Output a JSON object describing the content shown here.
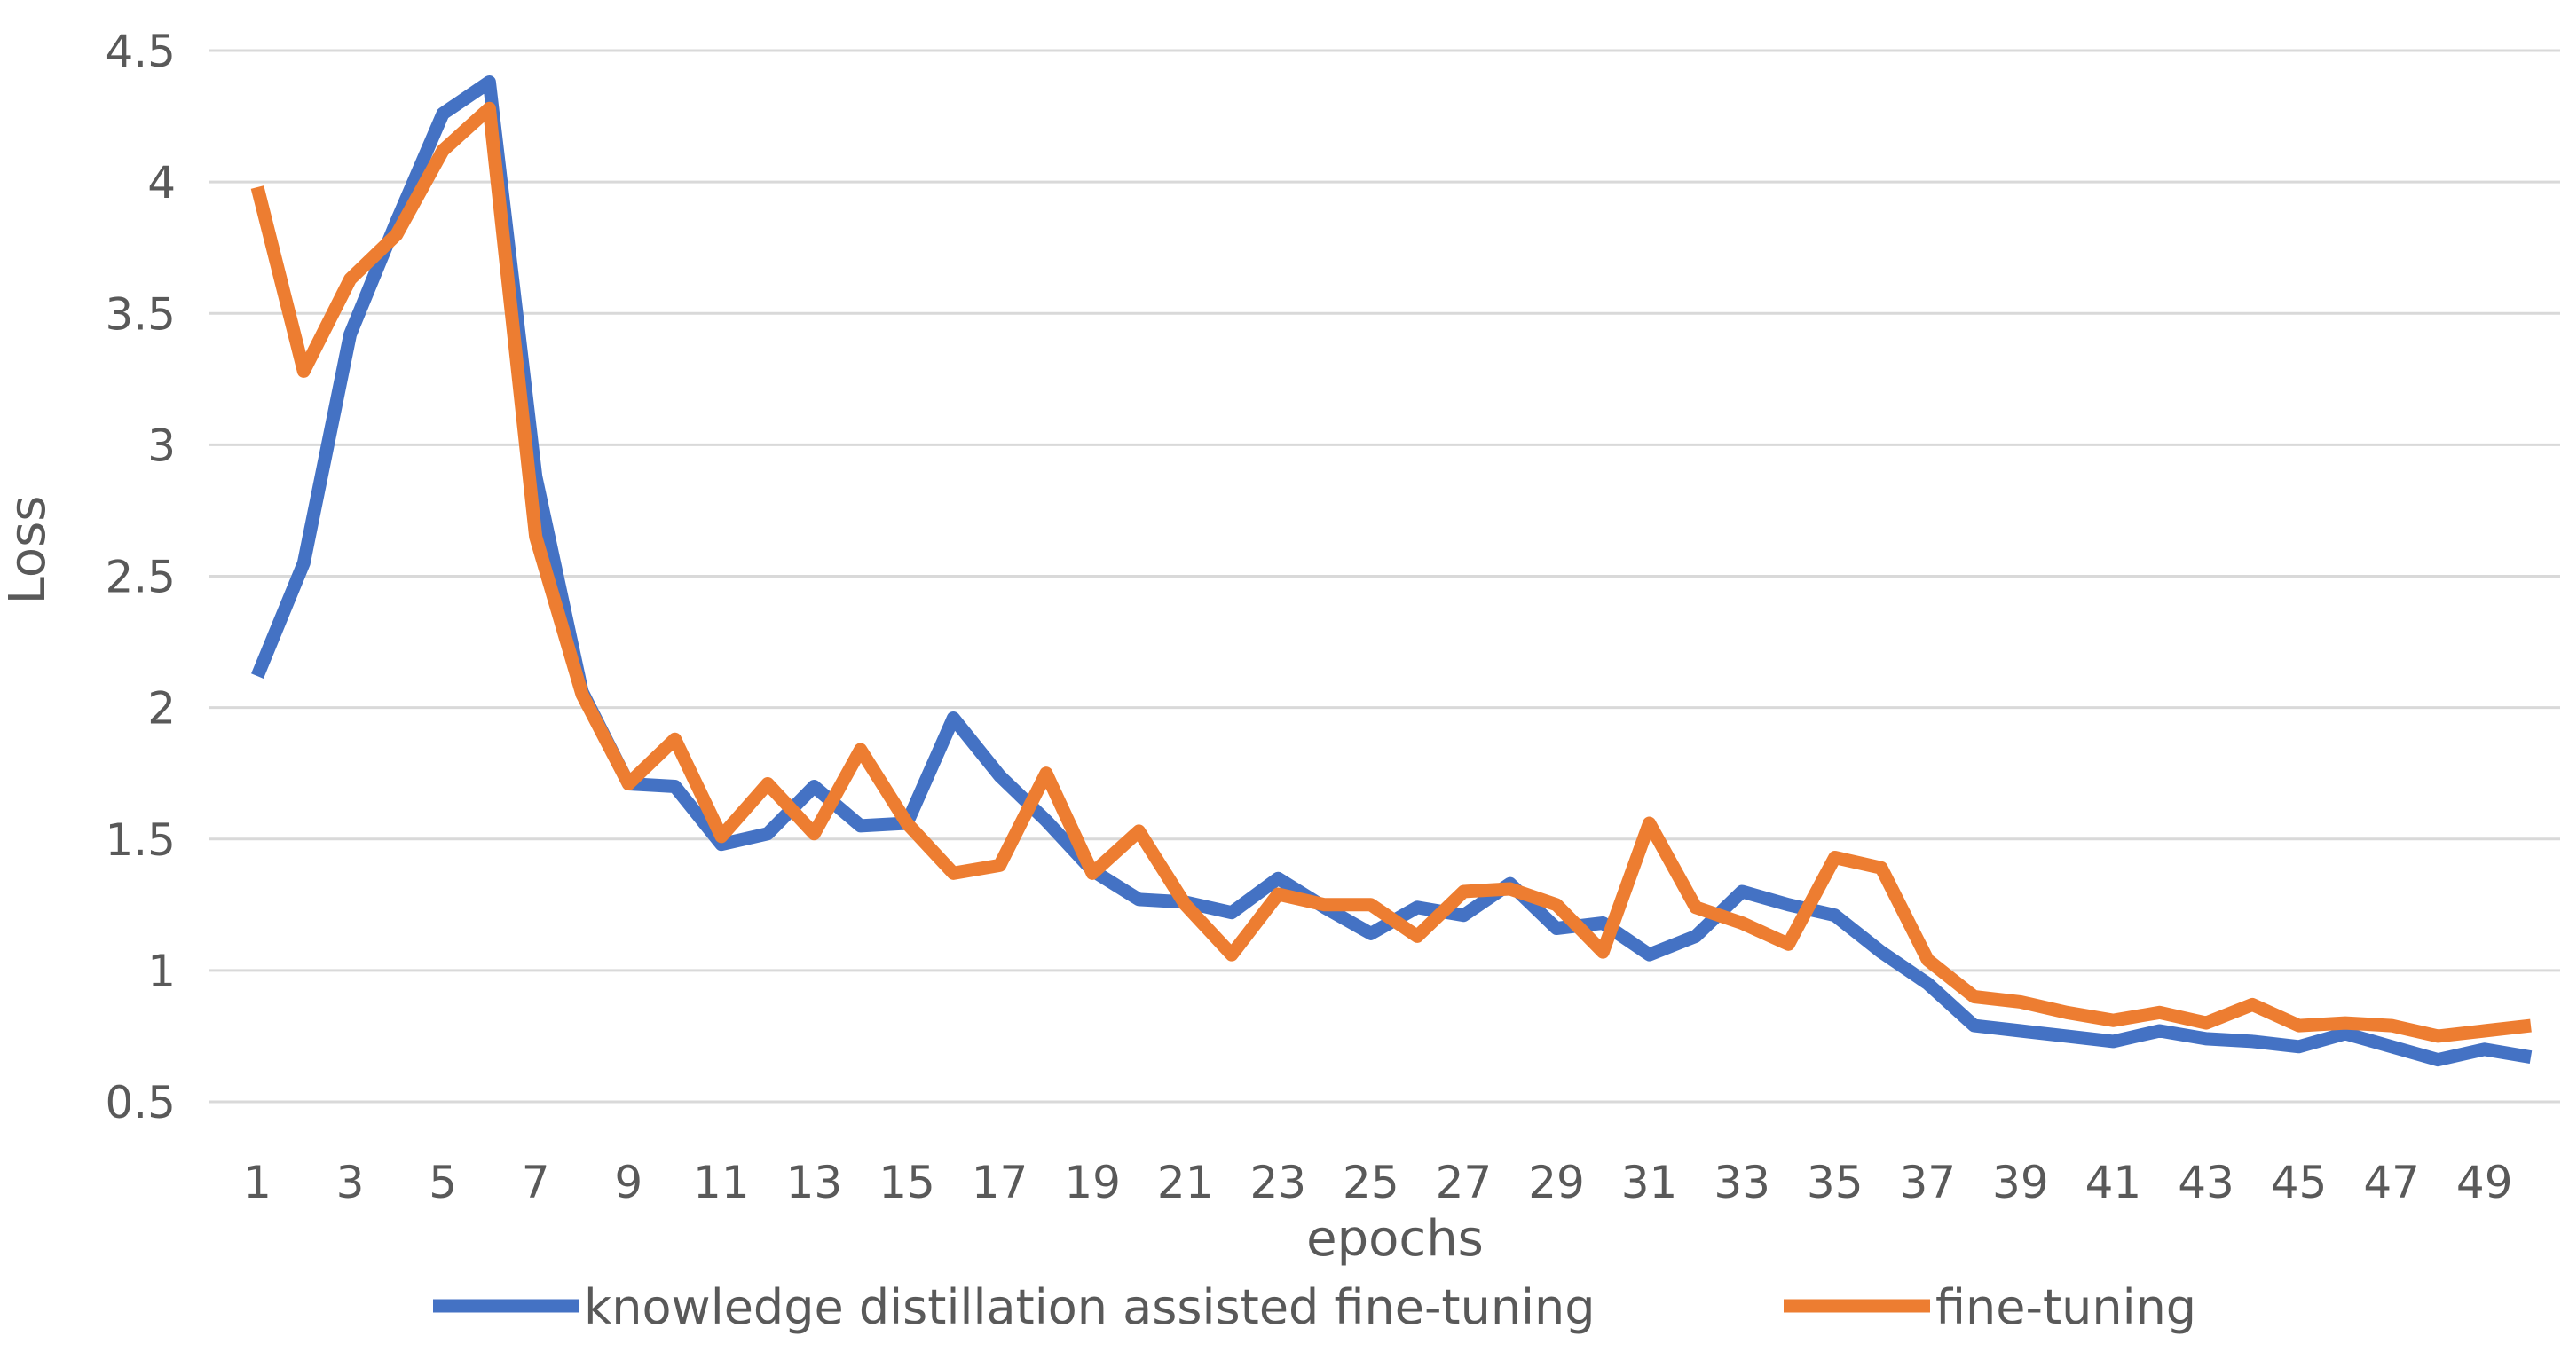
{
  "chart_data": {
    "type": "line",
    "title": "",
    "xlabel": "epochs",
    "ylabel": "Loss",
    "ylim": [
      0.5,
      4.5
    ],
    "yticks": [
      "0.5",
      "1",
      "1.5",
      "2",
      "2.5",
      "3",
      "3.5",
      "4",
      "4.5"
    ],
    "ytick_values": [
      0.5,
      1,
      1.5,
      2,
      2.5,
      3,
      3.5,
      4,
      4.5
    ],
    "x": [
      1,
      2,
      3,
      4,
      5,
      6,
      7,
      8,
      9,
      10,
      11,
      12,
      13,
      14,
      15,
      16,
      17,
      18,
      19,
      20,
      21,
      22,
      23,
      24,
      25,
      26,
      27,
      28,
      29,
      30,
      31,
      32,
      33,
      34,
      35,
      36,
      37,
      38,
      39,
      40,
      41,
      42,
      43,
      44,
      45,
      46,
      47,
      48,
      49,
      50
    ],
    "xtick_labels": [
      "1",
      "3",
      "5",
      "7",
      "9",
      "11",
      "13",
      "15",
      "17",
      "19",
      "21",
      "23",
      "25",
      "27",
      "29",
      "31",
      "33",
      "35",
      "37",
      "39",
      "41",
      "43",
      "45",
      "47",
      "49"
    ],
    "grid": true,
    "legend_position": "bottom",
    "series": [
      {
        "name": "knowledge distillation assisted fine-tuning",
        "color": "#4472C4",
        "values": [
          2.12,
          2.55,
          3.42,
          3.85,
          4.26,
          4.38,
          2.88,
          2.06,
          1.71,
          1.7,
          1.48,
          1.52,
          1.7,
          1.55,
          1.56,
          1.96,
          1.74,
          1.57,
          1.38,
          1.27,
          1.26,
          1.22,
          1.35,
          1.24,
          1.14,
          1.24,
          1.21,
          1.33,
          1.16,
          1.18,
          1.06,
          1.13,
          1.3,
          1.25,
          1.21,
          1.07,
          0.95,
          0.79,
          0.77,
          0.75,
          0.73,
          0.77,
          0.74,
          0.73,
          0.71,
          0.76,
          0.71,
          0.66,
          0.7,
          0.67
        ]
      },
      {
        "name": "fine-tuning",
        "color": "#ED7D31",
        "values": [
          3.98,
          3.28,
          3.63,
          3.8,
          4.12,
          4.28,
          2.65,
          2.05,
          1.71,
          1.88,
          1.51,
          1.71,
          1.52,
          1.84,
          1.56,
          1.37,
          1.4,
          1.75,
          1.37,
          1.53,
          1.25,
          1.06,
          1.29,
          1.25,
          1.25,
          1.13,
          1.3,
          1.31,
          1.25,
          1.07,
          1.56,
          1.24,
          1.18,
          1.1,
          1.43,
          1.39,
          1.04,
          0.9,
          0.88,
          0.84,
          0.81,
          0.84,
          0.8,
          0.87,
          0.79,
          0.8,
          0.79,
          0.75,
          0.77,
          0.79
        ]
      }
    ]
  }
}
